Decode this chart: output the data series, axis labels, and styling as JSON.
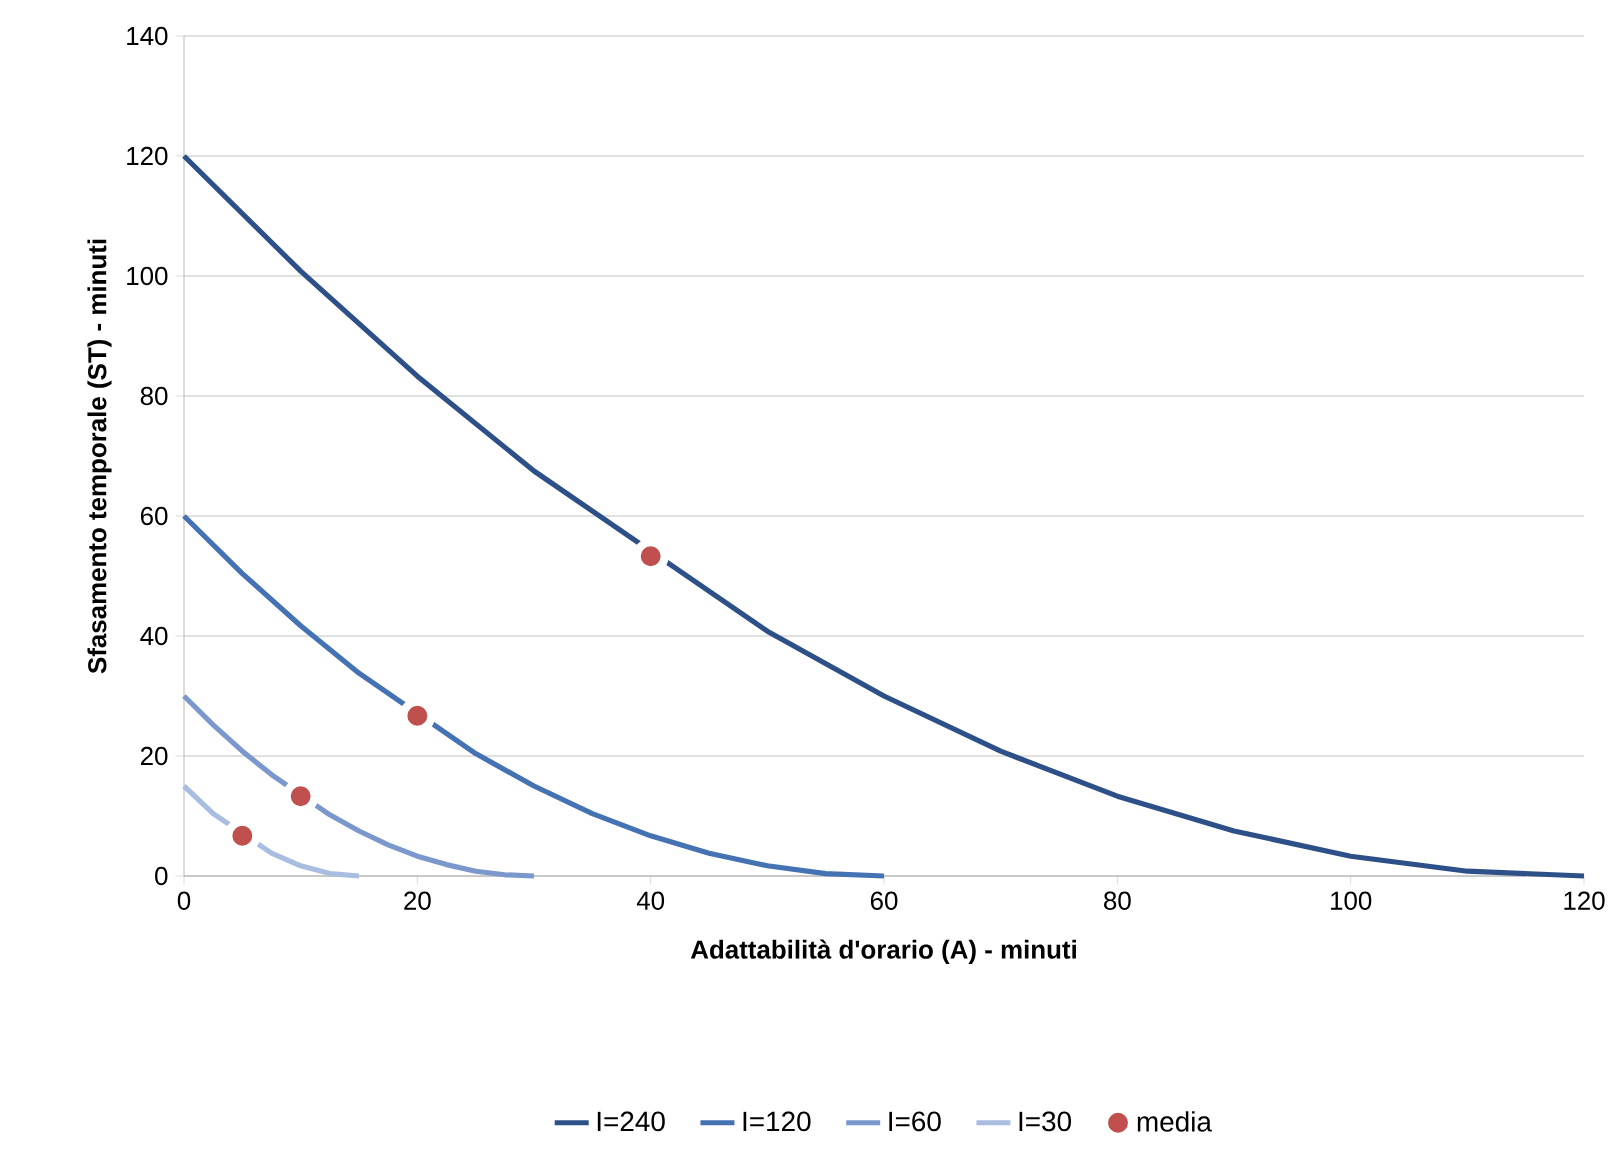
{
  "chart_data": {
    "type": "line",
    "xlabel": "Adattabilità d'orario (A) - minuti",
    "ylabel": "Sfasamento temporale (ST) - minuti",
    "xlim": [
      0,
      120
    ],
    "xticks": [
      0,
      20,
      40,
      60,
      80,
      100,
      120
    ],
    "ylim": [
      0,
      140
    ],
    "yticks": [
      0,
      20,
      40,
      60,
      80,
      100,
      120,
      140
    ],
    "grid": "y",
    "legend": "bottom",
    "marker": "none",
    "line_style": "solid",
    "series": [
      {
        "name": "I=240",
        "color": "#2e5088",
        "x": [
          0,
          10,
          20,
          30,
          50,
          60,
          70,
          80,
          90,
          100,
          110,
          120
        ],
        "values": [
          120,
          100.8,
          83.3,
          67.5,
          40.8,
          30,
          20.8,
          13.3,
          7.5,
          3.3,
          0.8,
          0
        ]
      },
      {
        "name": "I=120",
        "color": "#4472b2",
        "x": [
          0,
          5,
          10,
          15,
          25,
          30,
          35,
          40,
          45,
          50,
          55,
          60
        ],
        "values": [
          60,
          50.4,
          41.7,
          33.8,
          20.4,
          15,
          10.4,
          6.7,
          3.8,
          1.7,
          0.4,
          0
        ]
      },
      {
        "name": "I=60",
        "color": "#7b98cc",
        "x": [
          0,
          2.5,
          5,
          7.5,
          12.5,
          15,
          17.5,
          20,
          22.5,
          25,
          27.5,
          30
        ],
        "values": [
          30,
          25.2,
          20.8,
          16.9,
          10.2,
          7.5,
          5.2,
          3.3,
          1.9,
          0.8,
          0.2,
          0
        ]
      },
      {
        "name": "I=30",
        "color": "#a9bde0",
        "x": [
          0,
          2.5,
          7.5,
          10,
          12.5,
          15
        ],
        "values": [
          15,
          10.4,
          3.8,
          1.7,
          0.4,
          0
        ]
      },
      {
        "name": "media",
        "type": "scatter",
        "marker": "circle",
        "color": "#c0504d",
        "x": [
          5,
          10,
          20,
          40
        ],
        "values": [
          6.7,
          13.3,
          26.7,
          53.3
        ]
      }
    ]
  }
}
